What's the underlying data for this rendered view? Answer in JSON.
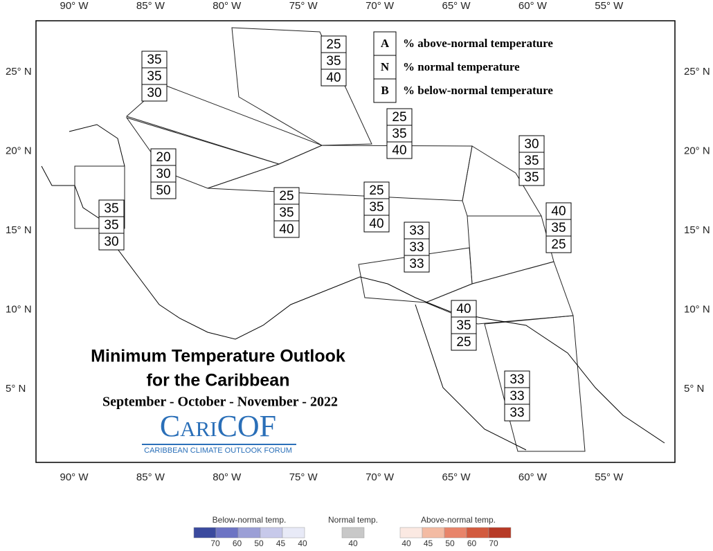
{
  "map": {
    "lon_labels": [
      "90° W",
      "85° W",
      "80° W",
      "75° W",
      "70° W",
      "65° W",
      "60° W",
      "55° W"
    ],
    "lat_labels": [
      "25° N",
      "20° N",
      "15° N",
      "10° N",
      "5° N"
    ]
  },
  "title": [
    "Minimum Temperature Outlook",
    "for the Caribbean"
  ],
  "subtitle": "September - October - November - 2022",
  "logo": {
    "name": "CariCOF",
    "tagline": "CARIBBEAN CLIMATE OUTLOOK FORUM"
  },
  "key": [
    {
      "letter": "A",
      "text": "% above-normal temperature"
    },
    {
      "letter": "N",
      "text": "% normal temperature"
    },
    {
      "letter": "B",
      "text": "% below-normal temperature"
    }
  ],
  "zones": [
    {
      "A": 35,
      "N": 35,
      "B": 30
    },
    {
      "A": 25,
      "N": 35,
      "B": 40
    },
    {
      "A": 20,
      "N": 30,
      "B": 50
    },
    {
      "A": 25,
      "N": 35,
      "B": 40
    },
    {
      "A": 30,
      "N": 35,
      "B": 35
    },
    {
      "A": 35,
      "N": 35,
      "B": 30
    },
    {
      "A": 25,
      "N": 35,
      "B": 40
    },
    {
      "A": 25,
      "N": 35,
      "B": 40
    },
    {
      "A": 40,
      "N": 35,
      "B": 25
    },
    {
      "A": 33,
      "N": 33,
      "B": 33
    },
    {
      "A": 40,
      "N": 35,
      "B": 25
    },
    {
      "A": 33,
      "N": 33,
      "B": 33
    }
  ],
  "legend": {
    "below": {
      "label": "Below-normal temp.",
      "ticks": [
        70,
        60,
        50,
        45,
        40
      ]
    },
    "normal": {
      "label": "Normal temp.",
      "ticks": [
        40
      ]
    },
    "above": {
      "label": "Above-normal temp.",
      "ticks": [
        40,
        45,
        50,
        60,
        70
      ]
    }
  }
}
